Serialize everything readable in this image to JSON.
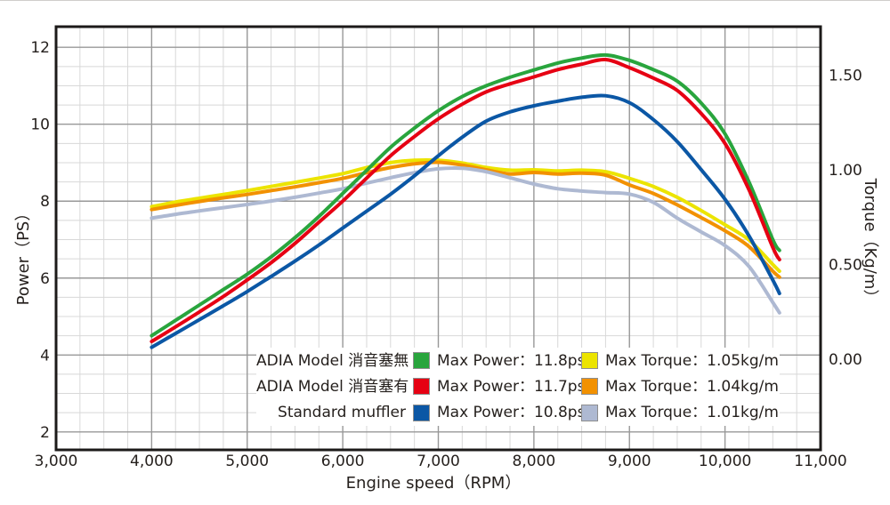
{
  "chart_data": {
    "type": "line",
    "title": "",
    "x_axis": {
      "label": "Engine speed（RPM）",
      "min": 3000,
      "max": 11000,
      "major_tick_step": 1000,
      "minor_tick_step": 250,
      "tick_labels": [
        "3,000",
        "4,000",
        "5,000",
        "6,000",
        "7,000",
        "8,000",
        "9,000",
        "10,000",
        "11,000"
      ],
      "tick_values": [
        3000,
        4000,
        5000,
        6000,
        7000,
        8000,
        9000,
        10000,
        11000
      ]
    },
    "y_axis_left": {
      "label": "Power（PS）",
      "units": "PS",
      "tick_labels": [
        "2",
        "4",
        "6",
        "8",
        "10",
        "12"
      ],
      "tick_values": [
        2,
        4,
        6,
        8,
        10,
        12
      ],
      "minor_step": 0.5,
      "range": [
        1.5,
        12.5
      ],
      "grid": true
    },
    "y_axis_right": {
      "label": "Torque（Kg/m）",
      "units": "Kg/m",
      "tick_labels": [
        "0.00",
        "0.50",
        "1.00",
        "1.50"
      ],
      "tick_values": [
        0.0,
        0.5,
        1.0,
        1.5
      ]
    },
    "legend_position": "inside-bottom-center",
    "rpm": [
      4000,
      4250,
      4500,
      4750,
      5000,
      5250,
      5500,
      5750,
      6000,
      6250,
      6500,
      6750,
      7000,
      7250,
      7500,
      7750,
      8000,
      8250,
      8500,
      8750,
      9000,
      9250,
      9500,
      9750,
      10000,
      10250,
      10500,
      10570
    ],
    "series": [
      {
        "id": "power-adia-open",
        "name": "ADIA Model 消音塞無 Power",
        "axis": "left",
        "color": "#29a53d",
        "max_label": "11.8ps",
        "values": [
          4.5,
          4.9,
          5.3,
          5.7,
          6.1,
          6.55,
          7.05,
          7.6,
          8.2,
          8.8,
          9.4,
          9.9,
          10.35,
          10.72,
          11.0,
          11.22,
          11.41,
          11.59,
          11.72,
          11.8,
          11.66,
          11.42,
          11.12,
          10.55,
          9.75,
          8.5,
          7.0,
          6.72
        ]
      },
      {
        "id": "power-adia-closed",
        "name": "ADIA Model 消音塞有 Power",
        "axis": "left",
        "color": "#e60013",
        "max_label": "11.7ps",
        "values": [
          4.35,
          4.73,
          5.12,
          5.52,
          5.95,
          6.4,
          6.9,
          7.45,
          8.0,
          8.6,
          9.18,
          9.68,
          10.14,
          10.52,
          10.84,
          11.05,
          11.23,
          11.42,
          11.56,
          11.68,
          11.47,
          11.2,
          10.88,
          10.28,
          9.5,
          8.3,
          6.8,
          6.48
        ]
      },
      {
        "id": "power-standard",
        "name": "Standard muffler Power",
        "axis": "left",
        "color": "#0b57a5",
        "max_label": "10.8ps",
        "values": [
          4.2,
          4.56,
          4.92,
          5.28,
          5.65,
          6.04,
          6.44,
          6.86,
          7.3,
          7.74,
          8.18,
          8.66,
          9.18,
          9.66,
          10.08,
          10.32,
          10.48,
          10.6,
          10.7,
          10.74,
          10.56,
          10.12,
          9.55,
          8.82,
          8.05,
          7.1,
          5.95,
          5.6
        ]
      },
      {
        "id": "torque-adia-open",
        "name": "ADIA Model 消音塞無 Torque",
        "axis": "right",
        "color": "#ece400",
        "max_label": "1.05kg/m",
        "values": [
          0.805,
          0.83,
          0.85,
          0.87,
          0.89,
          0.912,
          0.934,
          0.956,
          0.98,
          1.012,
          1.038,
          1.05,
          1.05,
          1.036,
          1.012,
          0.998,
          1.0,
          0.994,
          0.998,
          0.99,
          0.955,
          0.912,
          0.855,
          0.785,
          0.71,
          0.63,
          0.5,
          0.465
        ]
      },
      {
        "id": "torque-adia-closed",
        "name": "ADIA Model 消音塞有 Torque",
        "axis": "right",
        "color": "#f29100",
        "max_label": "1.04kg/m",
        "values": [
          0.79,
          0.812,
          0.833,
          0.852,
          0.87,
          0.89,
          0.91,
          0.932,
          0.955,
          0.985,
          1.012,
          1.032,
          1.04,
          1.025,
          1.0,
          0.978,
          0.986,
          0.978,
          0.982,
          0.972,
          0.92,
          0.875,
          0.815,
          0.748,
          0.678,
          0.595,
          0.465,
          0.433
        ]
      },
      {
        "id": "torque-standard",
        "name": "Standard muffler Torque",
        "axis": "right",
        "color": "#aeb9d2",
        "max_label": "1.01kg/m",
        "values": [
          0.745,
          0.765,
          0.783,
          0.8,
          0.817,
          0.835,
          0.855,
          0.877,
          0.9,
          0.93,
          0.958,
          0.985,
          1.005,
          1.008,
          0.99,
          0.958,
          0.925,
          0.9,
          0.888,
          0.88,
          0.872,
          0.828,
          0.745,
          0.672,
          0.6,
          0.49,
          0.3,
          0.245
        ]
      }
    ],
    "legend": {
      "rows": [
        {
          "name": "ADIA Model 消音塞無",
          "power_color": "#29a53d",
          "power_label": "Max Power：11.8ps",
          "torque_color": "#ece400",
          "torque_label": "Max Torque：1.05kg/m"
        },
        {
          "name": "ADIA Model 消音塞有",
          "power_color": "#e60013",
          "power_label": "Max Power：11.7ps",
          "torque_color": "#f29100",
          "torque_label": "Max Torque：1.04kg/m"
        },
        {
          "name": "Standard muffler",
          "power_color": "#0b57a5",
          "power_label": "Max Power：10.8ps",
          "torque_color": "#aeb9d2",
          "torque_label": "Max Torque：1.01kg/m"
        }
      ]
    },
    "style": {
      "grid_minor_color": "#d8d8d8",
      "grid_major_color": "#989898",
      "plot_border_color": "#1c1a19",
      "text_color": "#241f1c",
      "background": "#ffffff",
      "curve_width": 4
    }
  }
}
